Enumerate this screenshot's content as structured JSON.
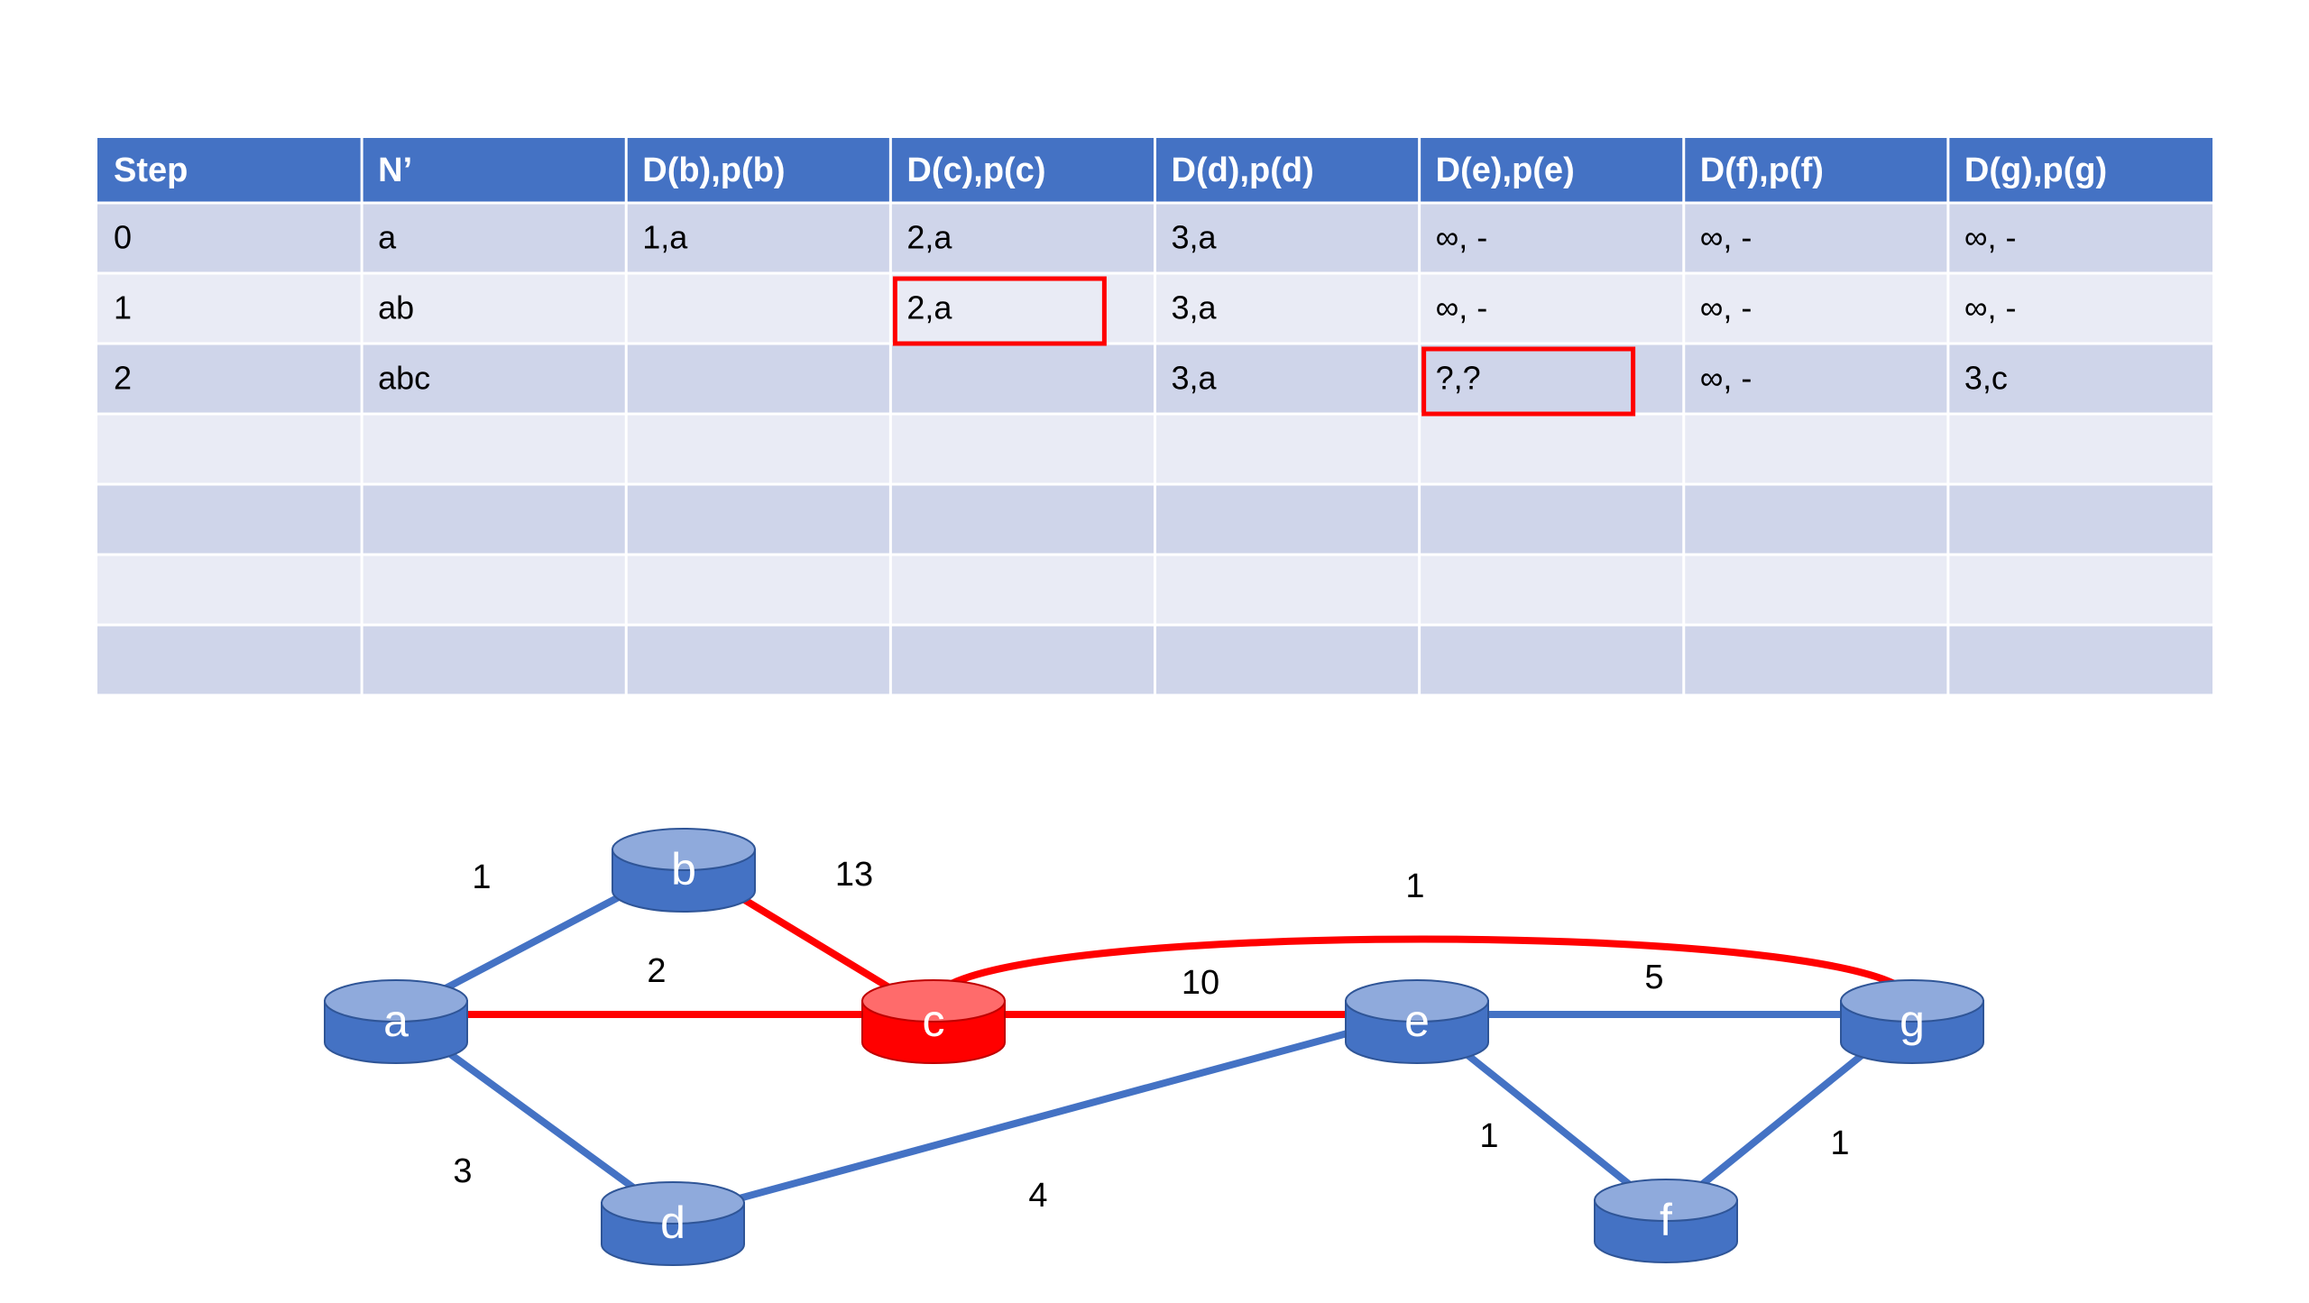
{
  "table": {
    "header": [
      "Step",
      "N’",
      "D(b),p(b)",
      "D(c),p(c)",
      "D(d),p(d)",
      "D(e),p(e)",
      "D(f),p(f)",
      "D(g),p(g)"
    ],
    "rows": [
      [
        "0",
        "a",
        "1,a",
        "2,a",
        "3,a",
        "∞, -",
        "∞, -",
        "∞, -"
      ],
      [
        "1",
        "ab",
        null,
        "2,a",
        "3,a",
        "∞, -",
        "∞, -",
        "∞, -"
      ],
      [
        "2",
        "abc",
        null,
        null,
        "3,a",
        "?,?",
        "∞, -",
        "3,c"
      ]
    ],
    "empty_rows": 4,
    "highlighted_cells": [
      [
        1,
        3
      ],
      [
        2,
        5
      ]
    ]
  },
  "graph": {
    "nodes": [
      {
        "label": "a"
      },
      {
        "label": "b"
      },
      {
        "label": "c",
        "highlighted": true
      },
      {
        "label": "d"
      },
      {
        "label": "e"
      },
      {
        "label": "f"
      },
      {
        "label": "g"
      }
    ],
    "edges": [
      {
        "from": "a",
        "to": "b",
        "weight": 1
      },
      {
        "from": "b",
        "to": "c",
        "weight": 13,
        "highlighted": true
      },
      {
        "from": "a",
        "to": "c",
        "weight": 2,
        "highlighted": true
      },
      {
        "from": "c",
        "to": "g",
        "weight": 1,
        "highlighted": true
      },
      {
        "from": "c",
        "to": "e",
        "weight": 10,
        "highlighted": true
      },
      {
        "from": "e",
        "to": "g",
        "weight": 5
      },
      {
        "from": "a",
        "to": "d",
        "weight": 3
      },
      {
        "from": "d",
        "to": "e",
        "weight": 4
      },
      {
        "from": "e",
        "to": "f",
        "weight": 1
      },
      {
        "from": "g",
        "to": "f",
        "weight": 1
      }
    ]
  }
}
